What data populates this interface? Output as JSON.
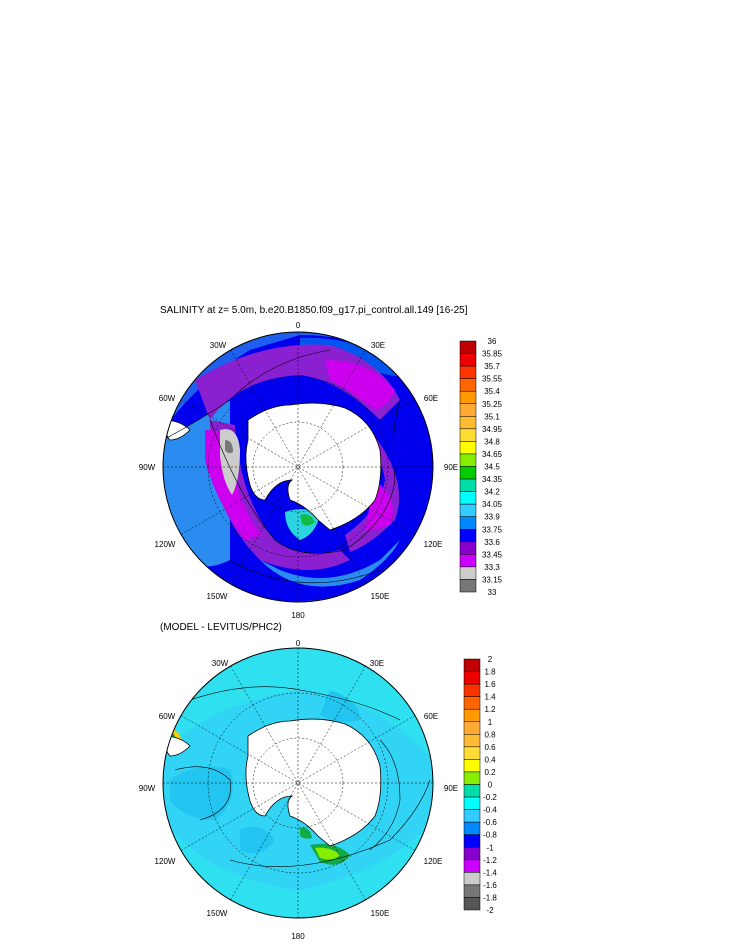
{
  "panel1": {
    "title": "SALINITY at z=   5.0m, b.e20.B1850.f09_g17.pi_control.all.149 [16-25]",
    "lon_labels": {
      "top": "0",
      "top_left": "30W",
      "top_right": "30E",
      "upper_left": "60W",
      "upper_right": "60E",
      "left": "90W",
      "right": "90E",
      "lower_left": "120W",
      "lower_right": "120E",
      "bottom_left": "150W",
      "bottom_right": "150E",
      "bottom": "180"
    },
    "colorbar": {
      "labels": [
        "36",
        "35.85",
        "35.7",
        "35.55",
        "35.4",
        "35.25",
        "35.1",
        "34.95",
        "34.8",
        "34.65",
        "34.5",
        "34.35",
        "34.2",
        "34.05",
        "33.9",
        "33.75",
        "33.6",
        "33.45",
        "33.3",
        "33.15",
        "33"
      ],
      "colors": [
        "#c00000",
        "#ee0000",
        "#ff3300",
        "#ff6600",
        "#ff9900",
        "#ffaa33",
        "#ffbb33",
        "#ffdd33",
        "#ffff00",
        "#88ee00",
        "#00cc00",
        "#00ddaa",
        "#00ffff",
        "#33ccff",
        "#0088ff",
        "#0000ff",
        "#8800cc",
        "#cc00ff",
        "#cccccc",
        "#777777"
      ]
    }
  },
  "panel2": {
    "title": "(MODEL - LEVITUS/PHC2)",
    "lon_labels": {
      "top": "0",
      "top_left": "30W",
      "top_right": "30E",
      "upper_left": "60W",
      "upper_right": "60E",
      "left": "90W",
      "right": "90E",
      "lower_left": "120W",
      "lower_right": "120E",
      "bottom_left": "150W",
      "bottom_right": "150E",
      "bottom": "180"
    },
    "colorbar": {
      "labels": [
        "2",
        "1.8",
        "1.6",
        "1.4",
        "1.2",
        "1",
        "0.8",
        "0.6",
        "0.4",
        "0.2",
        "0",
        "-0.2",
        "-0.4",
        "-0.6",
        "-0.8",
        "-1",
        "-1.2",
        "-1.4",
        "-1.6",
        "-1.8",
        "-2"
      ],
      "colors": [
        "#c00000",
        "#ee0000",
        "#ff3300",
        "#ff6600",
        "#ff9900",
        "#ffaa33",
        "#ffbb33",
        "#ffdd33",
        "#ffff00",
        "#88ee00",
        "#00ddaa",
        "#00ffff",
        "#33ccff",
        "#0088ff",
        "#0000ff",
        "#8800cc",
        "#cc00ff",
        "#cccccc",
        "#777777",
        "#555555"
      ]
    }
  }
}
